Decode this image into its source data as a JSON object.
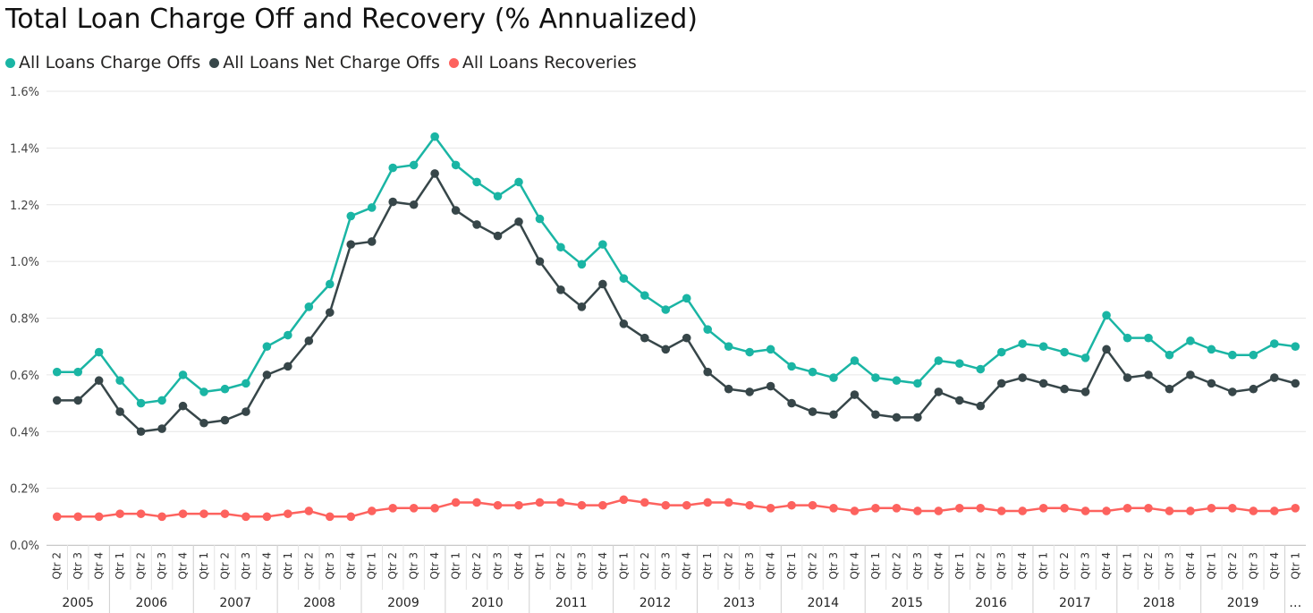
{
  "chart_data": {
    "type": "line",
    "title": "Total Loan Charge Off and Recovery (% Annualized)",
    "ylim": [
      0,
      1.6
    ],
    "yticks": [
      "0.0%",
      "0.2%",
      "0.4%",
      "0.6%",
      "0.8%",
      "1.0%",
      "1.2%",
      "1.4%",
      "1.6%"
    ],
    "grid": true,
    "legend_position": "top-left",
    "x": [
      "2005 Qtr 2",
      "2005 Qtr 3",
      "2005 Qtr 4",
      "2006 Qtr 1",
      "2006 Qtr 2",
      "2006 Qtr 3",
      "2006 Qtr 4",
      "2007 Qtr 1",
      "2007 Qtr 2",
      "2007 Qtr 3",
      "2007 Qtr 4",
      "2008 Qtr 1",
      "2008 Qtr 2",
      "2008 Qtr 3",
      "2008 Qtr 4",
      "2009 Qtr 1",
      "2009 Qtr 2",
      "2009 Qtr 3",
      "2009 Qtr 4",
      "2010 Qtr 1",
      "2010 Qtr 2",
      "2010 Qtr 3",
      "2010 Qtr 4",
      "2011 Qtr 1",
      "2011 Qtr 2",
      "2011 Qtr 3",
      "2011 Qtr 4",
      "2012 Qtr 1",
      "2012 Qtr 2",
      "2012 Qtr 3",
      "2012 Qtr 4",
      "2013 Qtr 1",
      "2013 Qtr 2",
      "2013 Qtr 3",
      "2013 Qtr 4",
      "2014 Qtr 1",
      "2014 Qtr 2",
      "2014 Qtr 3",
      "2014 Qtr 4",
      "2015 Qtr 1",
      "2015 Qtr 2",
      "2015 Qtr 3",
      "2015 Qtr 4",
      "2016 Qtr 1",
      "2016 Qtr 2",
      "2016 Qtr 3",
      "2016 Qtr 4",
      "2017 Qtr 1",
      "2017 Qtr 2",
      "2017 Qtr 3",
      "2017 Qtr 4",
      "2018 Qtr 1",
      "2018 Qtr 2",
      "2018 Qtr 3",
      "2018 Qtr 4",
      "2019 Qtr 1",
      "2019 Qtr 2",
      "2019 Qtr 3",
      "2019 Qtr 4",
      "… Qtr 1"
    ],
    "quarter_labels": [
      "Qtr 2",
      "Qtr 3",
      "Qtr 4",
      "Qtr 1",
      "Qtr 2",
      "Qtr 3",
      "Qtr 4",
      "Qtr 1",
      "Qtr 2",
      "Qtr 3",
      "Qtr 4",
      "Qtr 1",
      "Qtr 2",
      "Qtr 3",
      "Qtr 4",
      "Qtr 1",
      "Qtr 2",
      "Qtr 3",
      "Qtr 4",
      "Qtr 1",
      "Qtr 2",
      "Qtr 3",
      "Qtr 4",
      "Qtr 1",
      "Qtr 2",
      "Qtr 3",
      "Qtr 4",
      "Qtr 1",
      "Qtr 2",
      "Qtr 3",
      "Qtr 4",
      "Qtr 1",
      "Qtr 2",
      "Qtr 3",
      "Qtr 4",
      "Qtr 1",
      "Qtr 2",
      "Qtr 3",
      "Qtr 4",
      "Qtr 1",
      "Qtr 2",
      "Qtr 3",
      "Qtr 4",
      "Qtr 1",
      "Qtr 2",
      "Qtr 3",
      "Qtr 4",
      "Qtr 1",
      "Qtr 2",
      "Qtr 3",
      "Qtr 4",
      "Qtr 1",
      "Qtr 2",
      "Qtr 3",
      "Qtr 4",
      "Qtr 1",
      "Qtr 2",
      "Qtr 3",
      "Qtr 4",
      "Qtr 1"
    ],
    "year_groups": [
      {
        "label": "2005",
        "count": 3
      },
      {
        "label": "2006",
        "count": 4
      },
      {
        "label": "2007",
        "count": 4
      },
      {
        "label": "2008",
        "count": 4
      },
      {
        "label": "2009",
        "count": 4
      },
      {
        "label": "2010",
        "count": 4
      },
      {
        "label": "2011",
        "count": 4
      },
      {
        "label": "2012",
        "count": 4
      },
      {
        "label": "2013",
        "count": 4
      },
      {
        "label": "2014",
        "count": 4
      },
      {
        "label": "2015",
        "count": 4
      },
      {
        "label": "2016",
        "count": 4
      },
      {
        "label": "2017",
        "count": 4
      },
      {
        "label": "2018",
        "count": 4
      },
      {
        "label": "2019",
        "count": 4
      },
      {
        "label": "…",
        "count": 1
      }
    ],
    "series": [
      {
        "name": "All Loans Charge Offs",
        "color": "#1ab5a4",
        "values": [
          0.61,
          0.61,
          0.68,
          0.58,
          0.5,
          0.51,
          0.6,
          0.54,
          0.55,
          0.57,
          0.7,
          0.74,
          0.84,
          0.92,
          1.16,
          1.19,
          1.33,
          1.34,
          1.44,
          1.34,
          1.28,
          1.23,
          1.28,
          1.15,
          1.05,
          0.99,
          1.06,
          0.94,
          0.88,
          0.83,
          0.87,
          0.76,
          0.7,
          0.68,
          0.69,
          0.63,
          0.61,
          0.59,
          0.65,
          0.59,
          0.58,
          0.57,
          0.65,
          0.64,
          0.62,
          0.68,
          0.71,
          0.7,
          0.68,
          0.66,
          0.81,
          0.73,
          0.73,
          0.67,
          0.72,
          0.69,
          0.67,
          0.67,
          0.71,
          0.7
        ]
      },
      {
        "name": "All Loans Net Charge Offs",
        "color": "#374649",
        "values": [
          0.51,
          0.51,
          0.58,
          0.47,
          0.4,
          0.41,
          0.49,
          0.43,
          0.44,
          0.47,
          0.6,
          0.63,
          0.72,
          0.82,
          1.06,
          1.07,
          1.21,
          1.2,
          1.31,
          1.18,
          1.13,
          1.09,
          1.14,
          1.0,
          0.9,
          0.84,
          0.92,
          0.78,
          0.73,
          0.69,
          0.73,
          0.61,
          0.55,
          0.54,
          0.56,
          0.5,
          0.47,
          0.46,
          0.53,
          0.46,
          0.45,
          0.45,
          0.54,
          0.51,
          0.49,
          0.57,
          0.59,
          0.57,
          0.55,
          0.54,
          0.69,
          0.59,
          0.6,
          0.55,
          0.6,
          0.57,
          0.54,
          0.55,
          0.59,
          0.57
        ]
      },
      {
        "name": "All Loans Recoveries",
        "color": "#fd625e",
        "values": [
          0.1,
          0.1,
          0.1,
          0.11,
          0.11,
          0.1,
          0.11,
          0.11,
          0.11,
          0.1,
          0.1,
          0.11,
          0.12,
          0.1,
          0.1,
          0.12,
          0.13,
          0.13,
          0.13,
          0.15,
          0.15,
          0.14,
          0.14,
          0.15,
          0.15,
          0.14,
          0.14,
          0.16,
          0.15,
          0.14,
          0.14,
          0.15,
          0.15,
          0.14,
          0.13,
          0.14,
          0.14,
          0.13,
          0.12,
          0.13,
          0.13,
          0.12,
          0.12,
          0.13,
          0.13,
          0.12,
          0.12,
          0.13,
          0.13,
          0.12,
          0.12,
          0.13,
          0.13,
          0.12,
          0.12,
          0.13,
          0.13,
          0.12,
          0.12,
          0.13
        ]
      }
    ]
  }
}
